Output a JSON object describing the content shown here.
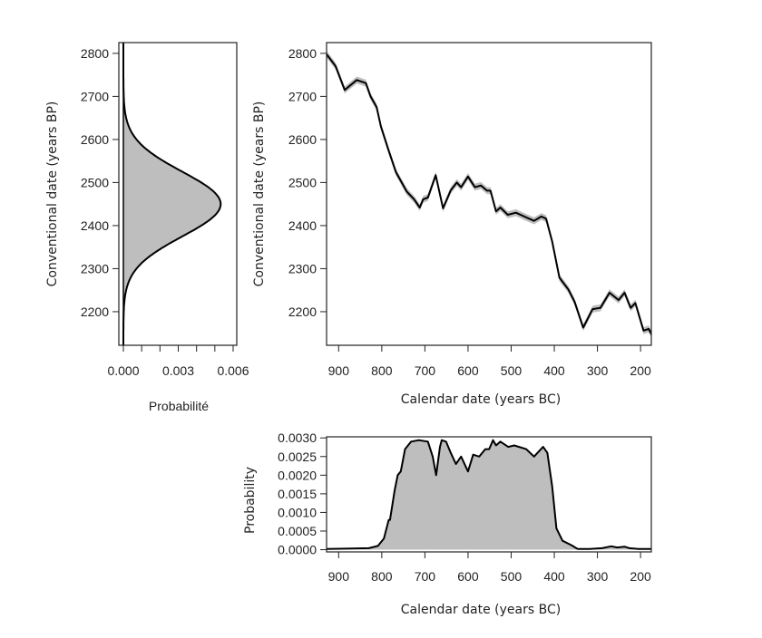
{
  "chart_data": [
    {
      "type": "area",
      "orientation": "horizontal-density",
      "xlabel": "Probabilité",
      "ylabel": "Conventional date (years BP)",
      "xlim": [
        0,
        0.0062
      ],
      "ylim": [
        2122,
        2825
      ],
      "xticks": [
        0,
        0.001,
        0.002,
        0.003,
        0.004,
        0.005,
        0.006
      ],
      "xtick_labels": [
        "0.000",
        "",
        "",
        "0.003",
        "",
        "",
        "0.006"
      ],
      "yticks": [
        2200,
        2300,
        2400,
        2500,
        2600,
        2700,
        2800
      ],
      "distribution": {
        "kind": "normal",
        "mean": 2450,
        "sd": 75
      },
      "fill_color": "#bebebe",
      "line_color": "#000000"
    },
    {
      "type": "line",
      "xlabel": "Calendar date (years BC)",
      "ylabel": "Conventional date (years BP)",
      "xlim": [
        928,
        175
      ],
      "ylim": [
        2122,
        2825
      ],
      "xticks": [
        900,
        800,
        700,
        600,
        500,
        400,
        300,
        200
      ],
      "yticks": [
        2200,
        2300,
        2400,
        2500,
        2600,
        2700,
        2800
      ],
      "band_halfwidth": 8,
      "band_color": "#bebebe",
      "line_color": "#000000",
      "x": [
        928,
        907,
        886,
        858,
        837,
        826,
        812,
        802,
        784,
        767,
        742,
        725,
        712,
        704,
        693,
        675,
        658,
        640,
        626,
        616,
        600,
        584,
        570,
        556,
        548,
        535,
        525,
        508,
        489,
        465,
        447,
        430,
        419,
        405,
        388,
        367,
        353,
        333,
        311,
        293,
        272,
        251,
        237,
        223,
        212,
        193,
        181,
        174
      ],
      "y": [
        2798,
        2770,
        2715,
        2738,
        2731,
        2700,
        2675,
        2630,
        2574,
        2524,
        2479,
        2461,
        2442,
        2461,
        2465,
        2517,
        2440,
        2482,
        2500,
        2489,
        2514,
        2489,
        2493,
        2481,
        2481,
        2433,
        2442,
        2425,
        2430,
        2419,
        2411,
        2421,
        2416,
        2363,
        2279,
        2251,
        2223,
        2163,
        2206,
        2209,
        2244,
        2227,
        2244,
        2209,
        2220,
        2156,
        2160,
        2146
      ]
    },
    {
      "type": "area",
      "xlabel": "Calendar date (years BC)",
      "ylabel": "Probability",
      "xlim": [
        928,
        175
      ],
      "ylim": [
        -6e-05,
        0.00303
      ],
      "xticks": [
        900,
        800,
        700,
        600,
        500,
        400,
        300,
        200
      ],
      "yticks": [
        0,
        0.0005,
        0.001,
        0.0015,
        0.002,
        0.0025,
        0.003
      ],
      "ytick_labels": [
        "0.0000",
        "0.0005",
        "0.0010",
        "0.0015",
        "0.0020",
        "0.0025",
        "0.0030"
      ],
      "fill_color": "#bebebe",
      "line_color": "#000000",
      "x": [
        928,
        830,
        809,
        795,
        784,
        781,
        770,
        763,
        756,
        746,
        732,
        714,
        693,
        682,
        674,
        665,
        661,
        651,
        640,
        628,
        616,
        600,
        588,
        574,
        560,
        551,
        542,
        535,
        525,
        507,
        493,
        465,
        447,
        426,
        416,
        405,
        395,
        381,
        360,
        346,
        318,
        289,
        268,
        254,
        237,
        226,
        205,
        174
      ],
      "y": [
        2e-05,
        4e-05,
        0.0001,
        0.0003,
        0.0008,
        0.0008,
        0.0016,
        0.002,
        0.0021,
        0.0027,
        0.0029,
        0.00294,
        0.0029,
        0.0025,
        0.002,
        0.00276,
        0.00294,
        0.0029,
        0.0026,
        0.0023,
        0.0025,
        0.0021,
        0.00255,
        0.0025,
        0.0027,
        0.0027,
        0.00294,
        0.0028,
        0.0029,
        0.00276,
        0.0028,
        0.0027,
        0.0025,
        0.00276,
        0.0026,
        0.0017,
        0.00057,
        0.00024,
        0.00012,
        2e-05,
        2e-05,
        4e-05,
        9e-05,
        6e-05,
        8e-05,
        4e-05,
        2e-05,
        2e-05
      ]
    }
  ]
}
